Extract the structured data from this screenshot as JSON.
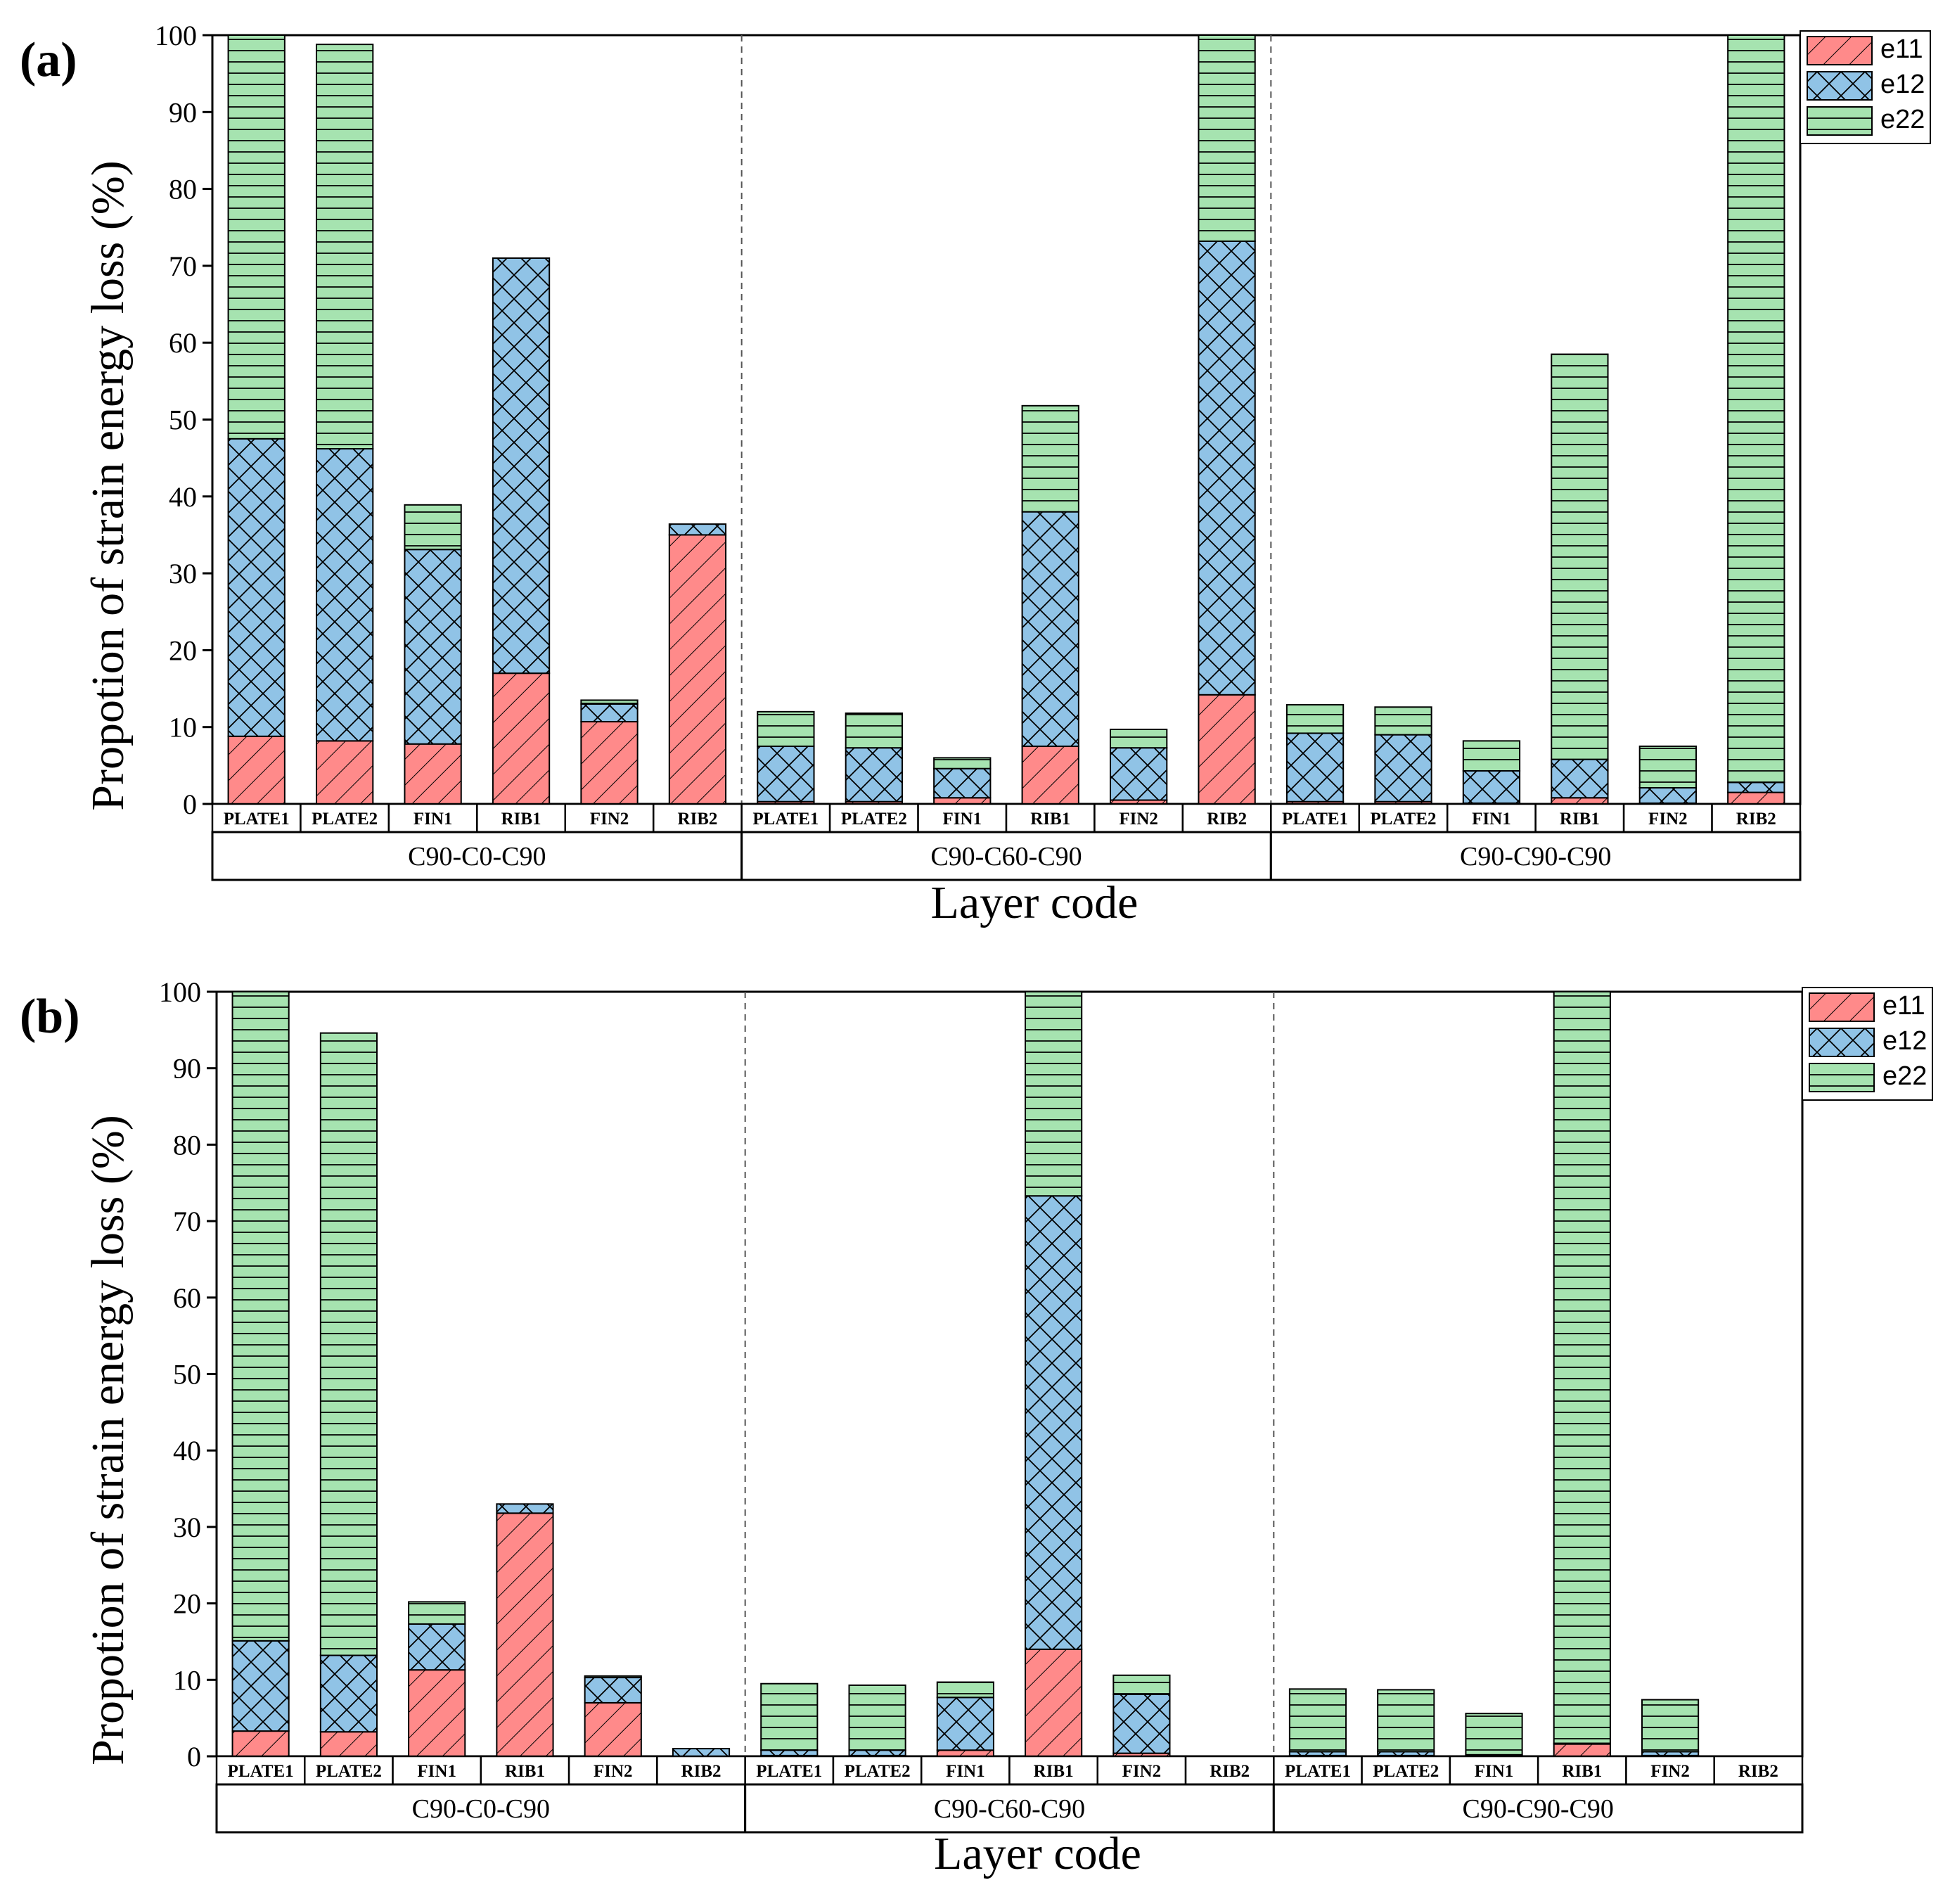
{
  "colors": {
    "e11": "#ff8a8a",
    "e12": "#90c3e6",
    "e22": "#a6e3b0",
    "stroke": "#000000"
  },
  "chart_data": [
    {
      "type": "bar",
      "stacked": true,
      "panel_label": "(a)",
      "ylabel": "Propotion of strain energy loss (%)",
      "xlabel": "Layer code",
      "ylim": [
        0,
        100
      ],
      "yticks": [
        "0",
        "10",
        "20",
        "30",
        "40",
        "50",
        "60",
        "70",
        "80",
        "90",
        "100"
      ],
      "groups": [
        "C90-C0-C90",
        "C90-C60-C90",
        "C90-C90-C90"
      ],
      "categories": [
        "PLATE1",
        "PLATE2",
        "FIN1",
        "RIB1",
        "FIN2",
        "RIB2",
        "PLATE1",
        "PLATE2",
        "FIN1",
        "RIB1",
        "FIN2",
        "RIB2",
        "PLATE1",
        "PLATE2",
        "FIN1",
        "RIB1",
        "FIN2",
        "RIB2"
      ],
      "legend": [
        "e11",
        "e12",
        "e22"
      ],
      "series": [
        {
          "name": "e11",
          "values": [
            8.8,
            8.2,
            7.8,
            17,
            10.7,
            35,
            0.3,
            0.3,
            0.8,
            7.5,
            0.5,
            14.2,
            0.3,
            0.3,
            0.1,
            0.8,
            0.1,
            1.5
          ]
        },
        {
          "name": "e12",
          "values": [
            38.7,
            38,
            25.3,
            54,
            2.3,
            1.4,
            7.2,
            7,
            3.8,
            30.5,
            6.8,
            59,
            8.9,
            8.7,
            4.2,
            5,
            2,
            1.3
          ]
        },
        {
          "name": "e22",
          "values": [
            52.5,
            52.6,
            5.8,
            0,
            0.5,
            0,
            4.5,
            4.5,
            1.4,
            13.8,
            2.4,
            26.8,
            3.7,
            3.6,
            3.9,
            52.7,
            5.4,
            97.2
          ]
        }
      ]
    },
    {
      "type": "bar",
      "stacked": true,
      "panel_label": "(b)",
      "ylabel": "Propotion of strain energy loss (%)",
      "xlabel": "Layer code",
      "ylim": [
        0,
        100
      ],
      "yticks": [
        "0",
        "10",
        "20",
        "30",
        "40",
        "50",
        "60",
        "70",
        "80",
        "90",
        "100"
      ],
      "groups": [
        "C90-C0-C90",
        "C90-C60-C90",
        "C90-C90-C90"
      ],
      "categories": [
        "PLATE1",
        "PLATE2",
        "FIN1",
        "RIB1",
        "FIN2",
        "RIB2",
        "PLATE1",
        "PLATE2",
        "FIN1",
        "RIB1",
        "FIN2",
        "RIB2",
        "PLATE1",
        "PLATE2",
        "FIN1",
        "RIB1",
        "FIN2",
        "RIB2"
      ],
      "legend": [
        "e11",
        "e12",
        "e22"
      ],
      "series": [
        {
          "name": "e11",
          "values": [
            3.3,
            3.2,
            11.3,
            31.8,
            7,
            0,
            0.1,
            0.1,
            0.8,
            14,
            0.4,
            0,
            0.1,
            0.1,
            0.1,
            1.6,
            0.1,
            0
          ]
        },
        {
          "name": "e12",
          "values": [
            11.8,
            10,
            6,
            1.2,
            3.3,
            1,
            0.7,
            0.7,
            6.9,
            59.3,
            7.7,
            0,
            0.5,
            0.5,
            0.1,
            0.1,
            0.5,
            0
          ]
        },
        {
          "name": "e22",
          "values": [
            84.9,
            81.4,
            2.9,
            0,
            0.2,
            0,
            8.7,
            8.5,
            2,
            26.7,
            2.5,
            0,
            8.2,
            8.1,
            5.4,
            98.3,
            6.8,
            0
          ]
        }
      ]
    }
  ]
}
